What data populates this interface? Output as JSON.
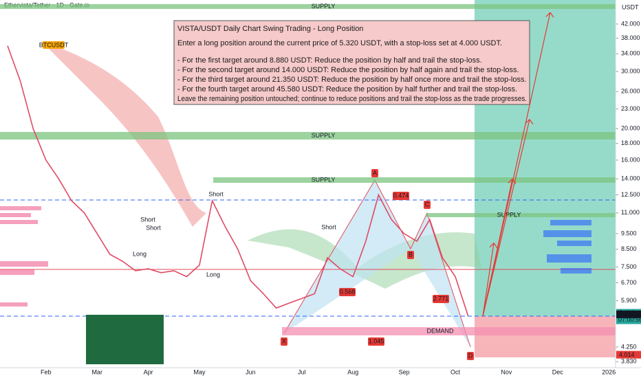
{
  "header": {
    "symbol": "Ethervista/Tether · 1D · Gate.io",
    "currency": "USDT"
  },
  "note": {
    "title": "VISTA/USDT Daily Chart Swing Trading - Long Position",
    "lines": [
      "Enter a long position around the current price of 5.320 USDT, with a stop-loss set at 4.000 USDT.",
      "- For the first target around 8.880 USDT: Reduce the position by half and trail the stop-loss.",
      "- For the second target around 14.000 USDT: Reduce the position by half again and trail the stop-loss.",
      "- For the third target around 21.350 USDT: Reduce the position by half once more and trail the stop-loss.",
      "- For the fourth target around 45.580 USDT: Reduce the position by half further and trail the stop-loss.",
      "Leave the remaining position untouched; continue to reduce positions and trail the stop-loss as the trade progresses."
    ]
  },
  "chart_data": {
    "type": "line",
    "log_scale": true,
    "color": "#e04a62",
    "categories": [
      null,
      null,
      null,
      "Feb",
      null,
      null,
      null,
      "Mar",
      null,
      null,
      null,
      "Apr",
      null,
      null,
      null,
      "May",
      null,
      null,
      null,
      "Jun",
      null,
      null,
      null,
      "Jul",
      null,
      null,
      null,
      "Aug",
      null,
      null,
      null,
      "Sep",
      null,
      null,
      null,
      "Oct",
      null,
      null,
      null,
      "Nov",
      null,
      null,
      null,
      "Dec",
      null,
      null,
      null,
      "2026"
    ],
    "values": [
      36,
      28,
      20,
      16,
      14,
      12,
      11,
      9.5,
      8.2,
      7.8,
      7.3,
      7.4,
      7.2,
      7.3,
      7.0,
      7.6,
      12,
      10,
      8.5,
      6.8,
      6.2,
      5.6,
      5.8,
      6.0,
      6.2,
      8.0,
      7.4,
      7.0,
      9.0,
      12.5,
      10.5,
      9.5,
      9.0,
      10.5,
      8.0,
      7.0,
      5.3,
      null,
      null,
      null,
      null,
      null,
      null,
      null,
      null,
      null,
      null,
      null
    ],
    "ylim": [
      3.67,
      49.8
    ],
    "yticks": [
      {
        "value": 42,
        "label": "42.000"
      },
      {
        "value": 38,
        "label": "38.000"
      },
      {
        "value": 34,
        "label": "34.000"
      },
      {
        "value": 30,
        "label": "30.000"
      },
      {
        "value": 26,
        "label": "26.000"
      },
      {
        "value": 23,
        "label": "23.000"
      },
      {
        "value": 20,
        "label": "20.000"
      },
      {
        "value": 18,
        "label": "18.000"
      },
      {
        "value": 16,
        "label": "16.000"
      },
      {
        "value": 14,
        "label": "14.000"
      },
      {
        "value": 12.5,
        "label": "12.500"
      },
      {
        "value": 11,
        "label": "11.000"
      },
      {
        "value": 9.5,
        "label": "9.500"
      },
      {
        "value": 8.5,
        "label": "8.500"
      },
      {
        "value": 7.5,
        "label": "7.500"
      },
      {
        "value": 6.7,
        "label": "6.700"
      },
      {
        "value": 5.9,
        "label": "5.900"
      },
      {
        "value": 4.25,
        "label": "4.250"
      },
      {
        "value": 3.83,
        "label": "3.830"
      }
    ],
    "target_values": [
      8.88,
      14,
      21.35,
      45.58
    ],
    "price_labels": [
      {
        "value": 5.406,
        "label": "5.406"
      },
      {
        "value": 5.344,
        "label": "5.344"
      },
      {
        "value": 4.014,
        "label": "4.014"
      }
    ],
    "countdown": "07:00:56",
    "zones": [
      "SUPPLY",
      "SUPPLY",
      "SUPPLY",
      "SUPPLY",
      "DEMAND"
    ],
    "pattern_points": [
      "X",
      "A",
      "B",
      "C",
      "D"
    ],
    "pattern_ratios": [
      0.474,
      0.568,
      2.771,
      1.045
    ],
    "signals": [
      "Short",
      "Short",
      "Short",
      "Short",
      "Long",
      "Long"
    ],
    "badge": "BTCUSDT"
  }
}
